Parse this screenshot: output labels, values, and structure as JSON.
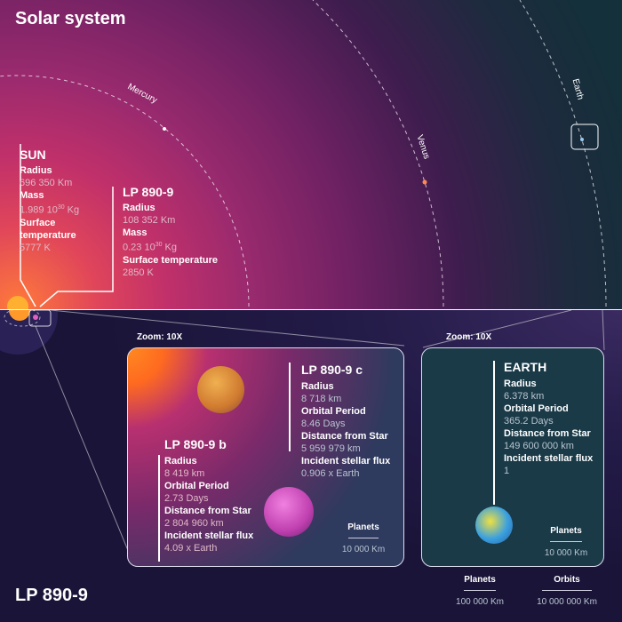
{
  "title": "Solar system",
  "bottom_title": "LP 890-9",
  "orbits": {
    "mercury": "Mercury",
    "venus": "Venus",
    "earth": "Earth"
  },
  "sun": {
    "name": "SUN",
    "radius_label": "Radius",
    "radius": "696 350 Km",
    "mass_label": "Mass",
    "mass": "1.989 10",
    "mass_exp": "30",
    "mass_unit": " Kg",
    "temp_label_1": "Surface",
    "temp_label_2": "temperature",
    "temp": "5777 K"
  },
  "star": {
    "name": "LP 890-9",
    "radius_label": "Radius",
    "radius": "108 352 Km",
    "mass_label": "Mass",
    "mass": "0.23 10",
    "mass_exp": "30",
    "mass_unit": " Kg",
    "temp_label": "Surface temperature",
    "temp": "2850 K"
  },
  "zoom_left": "Zoom: 10X",
  "zoom_right": "Zoom: 10X",
  "planet_b": {
    "name": "LP 890-9 b",
    "radius_label": "Radius",
    "radius": "8 419 km",
    "period_label": "Orbital Period",
    "period": "2.73 Days",
    "distance_label": "Distance from Star",
    "distance": "2 804 960 km",
    "flux_label": "Incident stellar flux",
    "flux": "4.09 x Earth"
  },
  "planet_c": {
    "name": "LP 890-9 c",
    "radius_label": "Radius",
    "radius": "8 718 km",
    "period_label": "Orbital Period",
    "period": "8.46 Days",
    "distance_label": "Distance from Star",
    "distance": "5 959 979 km",
    "flux_label": "Incident stellar flux",
    "flux": "0.906 x Earth"
  },
  "earth": {
    "name": "EARTH",
    "radius_label": "Radius",
    "radius": "6.378 km",
    "period_label": "Orbital Period",
    "period": "365.2 Days",
    "distance_label": "Distance from Star",
    "distance": "149 600 000 km",
    "flux_label": "Incident stellar flux",
    "flux": "1"
  },
  "scale_left": {
    "label": "Planets",
    "value": "10 000 Km"
  },
  "scale_right": {
    "label": "Planets",
    "value": "10 000 Km"
  },
  "scale_planets": {
    "label": "Planets",
    "value": "100 000 Km"
  },
  "scale_orbits": {
    "label": "Orbits",
    "value": "10 000 000 Km"
  },
  "colors": {
    "sun": "#ff8a20",
    "planet_b": "#e08a30",
    "planet_c": "#c040b0",
    "earth": "#3aa0e0"
  }
}
